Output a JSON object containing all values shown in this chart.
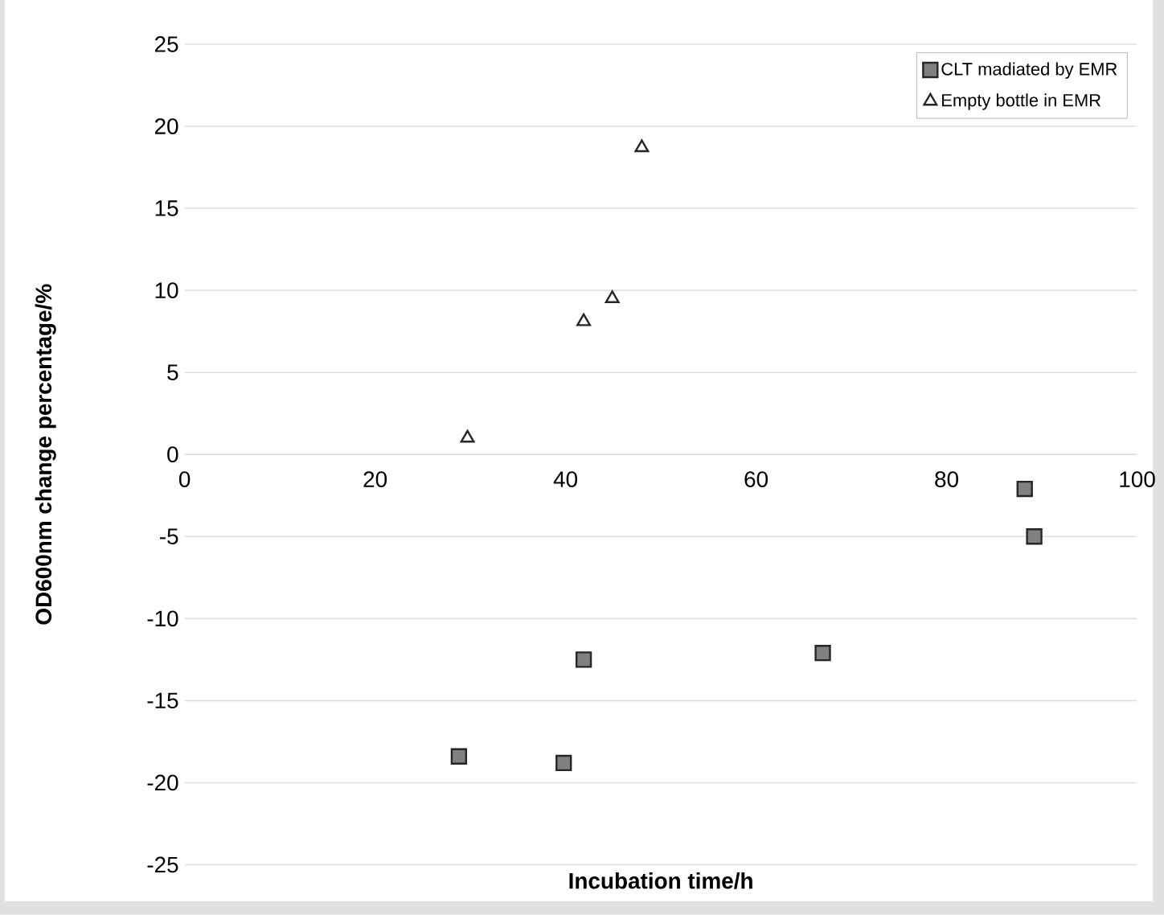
{
  "chart_data": {
    "type": "scatter",
    "xlabel": "Incubation time/h",
    "ylabel": "OD600nm change percentage/%",
    "xlim": [
      0,
      100
    ],
    "xticks": [
      0,
      20,
      40,
      60,
      80,
      100
    ],
    "ylim": [
      -25,
      25
    ],
    "yticks": [
      -25,
      -20,
      -15,
      -10,
      -5,
      0,
      5,
      10,
      15,
      20,
      25
    ],
    "grid": "y",
    "legend": "top right",
    "series": [
      {
        "name": "CLT madiated by EMR",
        "color": "#808080",
        "marker": "square",
        "x": [
          28.8,
          39.8,
          41.9,
          67.0,
          88.2,
          89.2
        ],
        "values": [
          -18.4,
          -18.8,
          -12.5,
          -12.1,
          -2.1,
          -5
        ]
      },
      {
        "name": "Empty bottle in EMR",
        "color": "#ffffff",
        "marker": "triangle",
        "x": [
          29.7,
          41.9,
          44.9,
          48.0
        ],
        "values": [
          1.0,
          8.1,
          9.5,
          18.7
        ]
      }
    ]
  }
}
